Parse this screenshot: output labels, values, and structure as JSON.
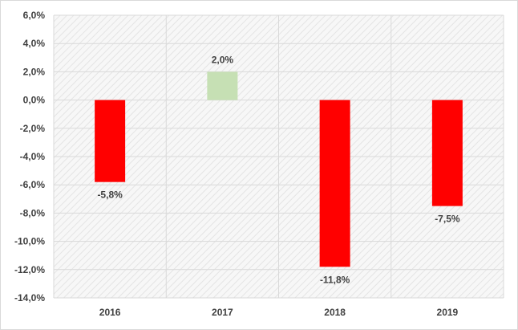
{
  "chart_data": {
    "type": "bar",
    "title": "",
    "xlabel": "",
    "ylabel": "",
    "categories": [
      "2016",
      "2017",
      "2018",
      "2019"
    ],
    "values": [
      -5.8,
      2.0,
      -11.8,
      -7.5
    ],
    "value_labels": [
      "-5,8%",
      "2,0%",
      "-11,8%",
      "-7,5%"
    ],
    "ylim": [
      -14,
      6
    ],
    "y_ticks": [
      6,
      4,
      2,
      0,
      -2,
      -4,
      -6,
      -8,
      -10,
      -12,
      -14
    ],
    "y_tick_labels": [
      "6,0%",
      "4,0%",
      "2,0%",
      "0,0%",
      "-2,0%",
      "-4,0%",
      "-6,0%",
      "-8,0%",
      "-10,0%",
      "-12,0%",
      "-14,0%"
    ],
    "grid": true,
    "legend": "none",
    "colors": {
      "negative": "#ff0000",
      "positive": "#c6e0b4",
      "gridline": "#d9d9d9",
      "plot_hatch": "#e4e4e4",
      "text": "#404040"
    }
  }
}
